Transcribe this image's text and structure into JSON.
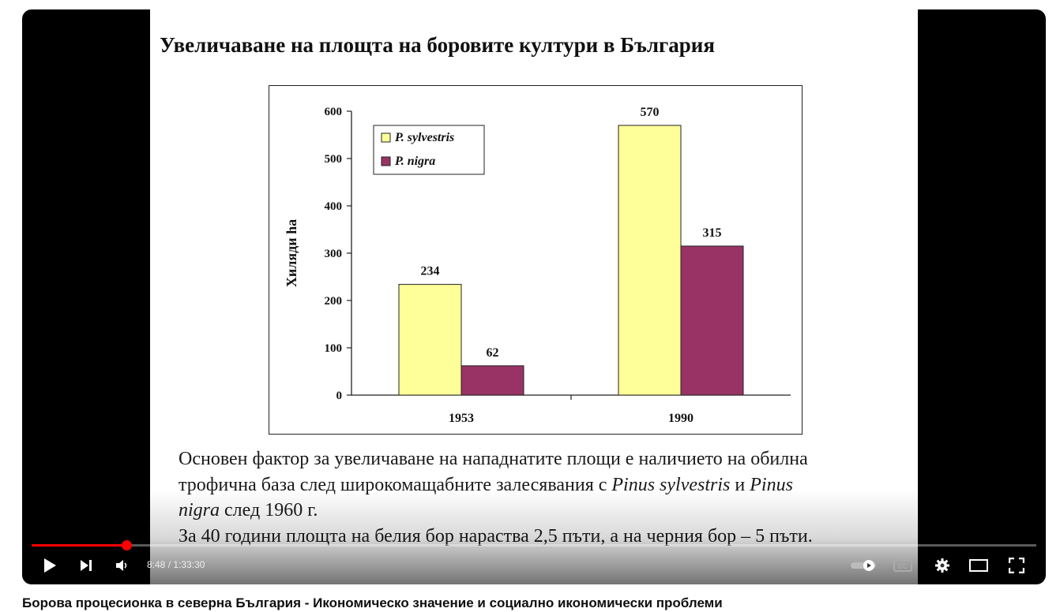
{
  "slide": {
    "title": "Увеличаване на площта на боровите култури в България",
    "body_line1": "Основен фактор за увеличаване на нападнатите площи е наличието на обилна",
    "body_line2a": "трофична база след широкомащабните залесявания с ",
    "body_line2b": "Pinus sylvestris",
    "body_line2c": " и ",
    "body_line2d": "Pinus",
    "body_line3a": "nigra",
    "body_line3b": " след 1960 г.",
    "body_line4": "За 40 години площта на белия бор нараства 2,5 пъти, а на черния бор – 5 пъти."
  },
  "chart_data": {
    "type": "bar",
    "title": "Увеличаване на площта на боровите култури в България",
    "categories": [
      "1953",
      "1990"
    ],
    "series": [
      {
        "name": "P. sylvestris",
        "values": [
          234,
          570
        ],
        "color": "#ffff99"
      },
      {
        "name": "P. nigra",
        "values": [
          62,
          315
        ],
        "color": "#993366"
      }
    ],
    "xlabel": "",
    "ylabel": "Хиляди ha",
    "ylim": [
      0,
      600
    ],
    "yticks": [
      0,
      100,
      200,
      300,
      400,
      500,
      600
    ],
    "legend_position": "top-left",
    "grid": false
  },
  "player": {
    "time_current": "8:48",
    "time_total": "1:33:30",
    "progress_fraction": 0.094,
    "colors": {
      "progress": "#ff0000",
      "background": "#000000"
    }
  },
  "video": {
    "title": "Борова процесионка в северна България - Икономическо значение и социално икономически проблеми"
  }
}
